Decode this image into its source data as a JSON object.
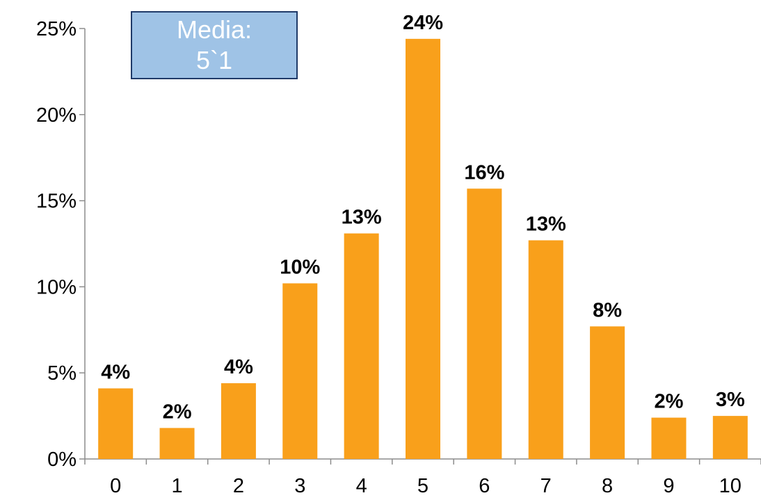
{
  "annotation": {
    "line1": "Media:",
    "line2": "5`1"
  },
  "colors": {
    "bar": "#f9a01b",
    "axis": "#8c8c8c",
    "annotation_bg": "#9fc3e6",
    "annotation_border": "#1f3a68"
  },
  "chart_data": {
    "type": "bar",
    "categories": [
      "0",
      "1",
      "2",
      "3",
      "4",
      "5",
      "6",
      "7",
      "8",
      "9",
      "10"
    ],
    "values": [
      4.1,
      1.8,
      4.4,
      10.2,
      13.1,
      24.4,
      15.7,
      12.7,
      7.7,
      2.4,
      2.5
    ],
    "data_labels": [
      "4%",
      "2%",
      "4%",
      "10%",
      "13%",
      "24%",
      "16%",
      "13%",
      "8%",
      "2%",
      "3%"
    ],
    "y_ticks": [
      0,
      5,
      10,
      15,
      20,
      25
    ],
    "y_tick_labels": [
      "0%",
      "5%",
      "10%",
      "15%",
      "20%",
      "25%"
    ],
    "ylim": [
      0,
      25
    ],
    "title": "",
    "xlabel": "",
    "ylabel": "",
    "grid": false,
    "legend": "none"
  }
}
